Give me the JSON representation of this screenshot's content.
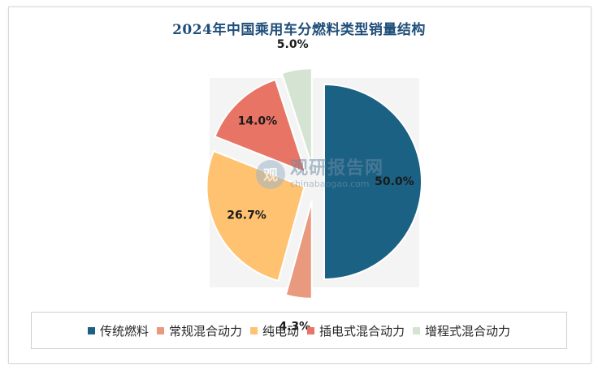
{
  "chart_data": {
    "type": "pie",
    "title": "2024年中国乘用车分燃料类型销量结构",
    "categories": [
      "传统燃料",
      "常规混合动力",
      "纯电动",
      "插电式混合动力",
      "增程式混合动力"
    ],
    "values": [
      50.0,
      4.3,
      26.7,
      14.0,
      5.0
    ],
    "labels": [
      "50.0%",
      "4.3%",
      "26.7%",
      "14.0%",
      "5.0%"
    ],
    "colors": [
      "#1b6184",
      "#e8997e",
      "#ffc271",
      "#e87465",
      "#d5e4d2"
    ],
    "legend_position": "bottom"
  },
  "watermark": {
    "logo_char": "观",
    "name": "观研报告网",
    "url": "chinabaogao.com"
  }
}
